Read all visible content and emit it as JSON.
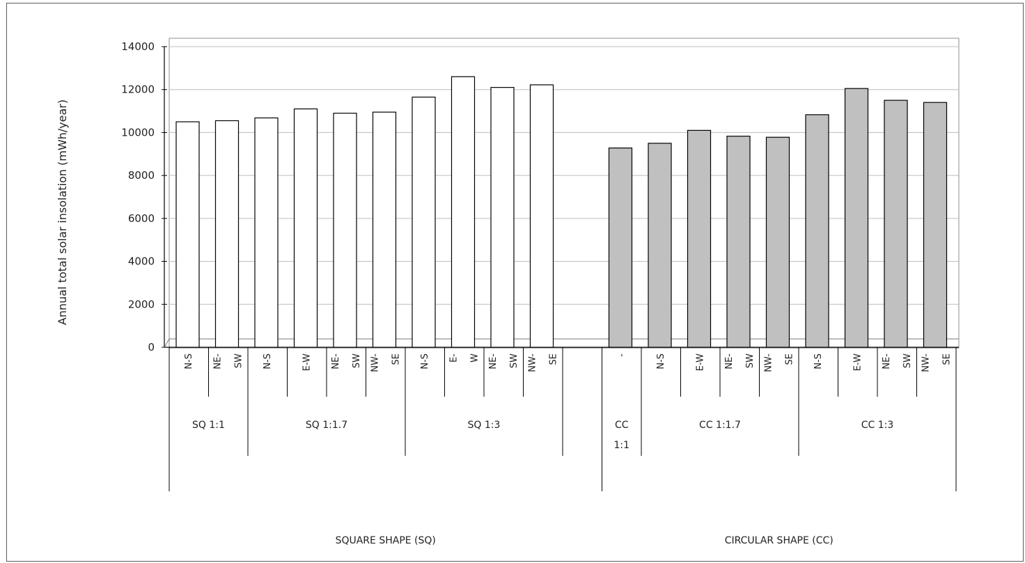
{
  "chart_data": {
    "type": "bar",
    "ylabel": "Annual total solar insolation (mWh/year)",
    "ylim": [
      0,
      14000
    ],
    "yticks": [
      "0",
      "2000",
      "4000",
      "6000",
      "8000",
      "10000",
      "12000",
      "14000"
    ],
    "grid": true,
    "colors": {
      "square": "#ffffff",
      "circular": "#c0c0c0",
      "stroke": "#000000",
      "grid": "#bdbdbd"
    },
    "categories": [
      {
        "lines": [
          "N-S"
        ]
      },
      {
        "lines": [
          "NE-",
          "SW"
        ]
      },
      {
        "lines": [
          "N-S"
        ]
      },
      {
        "lines": [
          "E-W"
        ]
      },
      {
        "lines": [
          "NE-",
          "SW"
        ]
      },
      {
        "lines": [
          "NW-",
          "SE"
        ]
      },
      {
        "lines": [
          "N-S"
        ]
      },
      {
        "lines": [
          "E-",
          "W"
        ]
      },
      {
        "lines": [
          "NE-",
          "SW"
        ]
      },
      {
        "lines": [
          "NW-",
          "SE"
        ]
      },
      {
        "lines": [
          ""
        ]
      },
      {
        "lines": [
          "-"
        ]
      },
      {
        "lines": [
          "N-S"
        ]
      },
      {
        "lines": [
          "E-W"
        ]
      },
      {
        "lines": [
          "NE-",
          "SW"
        ]
      },
      {
        "lines": [
          "NW-",
          "SE"
        ]
      },
      {
        "lines": [
          "N-S"
        ]
      },
      {
        "lines": [
          "E-W"
        ]
      },
      {
        "lines": [
          "NE-",
          "SW"
        ]
      },
      {
        "lines": [
          "NW-",
          "SE"
        ]
      }
    ],
    "values": [
      10500,
      10550,
      10680,
      11100,
      10900,
      10950,
      11650,
      12600,
      12100,
      12220,
      null,
      9280,
      9500,
      10100,
      9830,
      9780,
      10830,
      12050,
      11500,
      11400
    ],
    "series_type": [
      "square",
      "square",
      "square",
      "square",
      "square",
      "square",
      "square",
      "square",
      "square",
      "square",
      "none",
      "circular",
      "circular",
      "circular",
      "circular",
      "circular",
      "circular",
      "circular",
      "circular",
      "circular"
    ],
    "subgroups": [
      {
        "lines": [
          "SQ 1:1"
        ],
        "start": 0,
        "end": 2
      },
      {
        "lines": [
          "SQ 1:1.7"
        ],
        "start": 2,
        "end": 6
      },
      {
        "lines": [
          "SQ 1:3"
        ],
        "start": 6,
        "end": 10
      },
      {
        "lines": [
          "CC",
          "1:1"
        ],
        "start": 11,
        "end": 12
      },
      {
        "lines": [
          "CC 1:1.7"
        ],
        "start": 12,
        "end": 16
      },
      {
        "lines": [
          "CC 1:3"
        ],
        "start": 16,
        "end": 20
      }
    ],
    "groups": [
      {
        "label": "SQUARE SHAPE (SQ)",
        "start": 0,
        "end": 11
      },
      {
        "label": "CIRCULAR SHAPE (CC)",
        "start": 11,
        "end": 20
      }
    ]
  }
}
